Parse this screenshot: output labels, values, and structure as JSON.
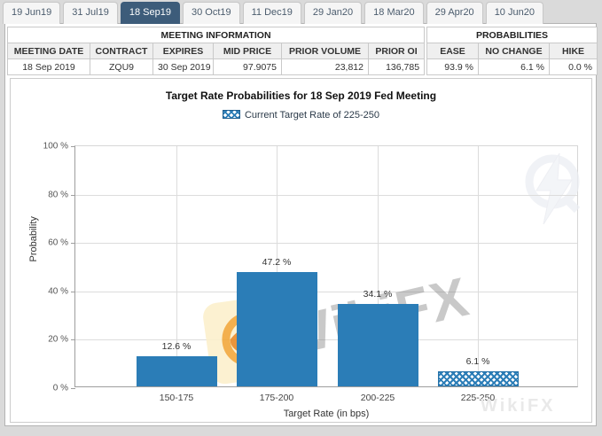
{
  "tabs": [
    {
      "label": "19 Jun19",
      "selected": false
    },
    {
      "label": "31 Jul19",
      "selected": false
    },
    {
      "label": "18 Sep19",
      "selected": true
    },
    {
      "label": "30 Oct19",
      "selected": false
    },
    {
      "label": "11 Dec19",
      "selected": false
    },
    {
      "label": "29 Jan20",
      "selected": false
    },
    {
      "label": "18 Mar20",
      "selected": false
    },
    {
      "label": "29 Apr20",
      "selected": false
    },
    {
      "label": "10 Jun20",
      "selected": false
    }
  ],
  "meeting_info": {
    "title": "MEETING INFORMATION",
    "columns": [
      "MEETING DATE",
      "CONTRACT",
      "EXPIRES",
      "MID PRICE",
      "PRIOR VOLUME",
      "PRIOR OI"
    ],
    "row": [
      "18 Sep 2019",
      "ZQU9",
      "30 Sep 2019",
      "97.9075",
      "23,812",
      "136,785"
    ]
  },
  "probabilities": {
    "title": "PROBABILITIES",
    "columns": [
      "EASE",
      "NO CHANGE",
      "HIKE"
    ],
    "row": [
      "93.9 %",
      "6.1 %",
      "0.0 %"
    ]
  },
  "chart_data": {
    "type": "bar",
    "title": "Target Rate Probabilities for 18 Sep 2019 Fed Meeting",
    "legend_label": "Current Target Rate of 225-250",
    "legend_position": "top",
    "categories": [
      "150-175",
      "175-200",
      "200-225",
      "225-250"
    ],
    "values": [
      12.6,
      47.2,
      34.1,
      6.1
    ],
    "value_labels": [
      "12.6 %",
      "47.2 %",
      "34.1 %",
      "6.1 %"
    ],
    "hatched_category": "225-250",
    "xlabel": "Target Rate (in bps)",
    "ylabel": "Probability",
    "ylim": [
      0,
      100
    ],
    "ytick_labels": [
      "100 %",
      "80 %",
      "60 %",
      "40 %",
      "20 %",
      "0 %"
    ],
    "grid": true,
    "bar_color": "#2b7db7",
    "selected_tab_color": "#3d5c7a"
  },
  "watermarks": {
    "center_text": "WikiFX",
    "bottom_text": "WikiFX",
    "icon": "wikifx-bird-icon",
    "ghost_icon": "quandl-lightning-icon"
  }
}
